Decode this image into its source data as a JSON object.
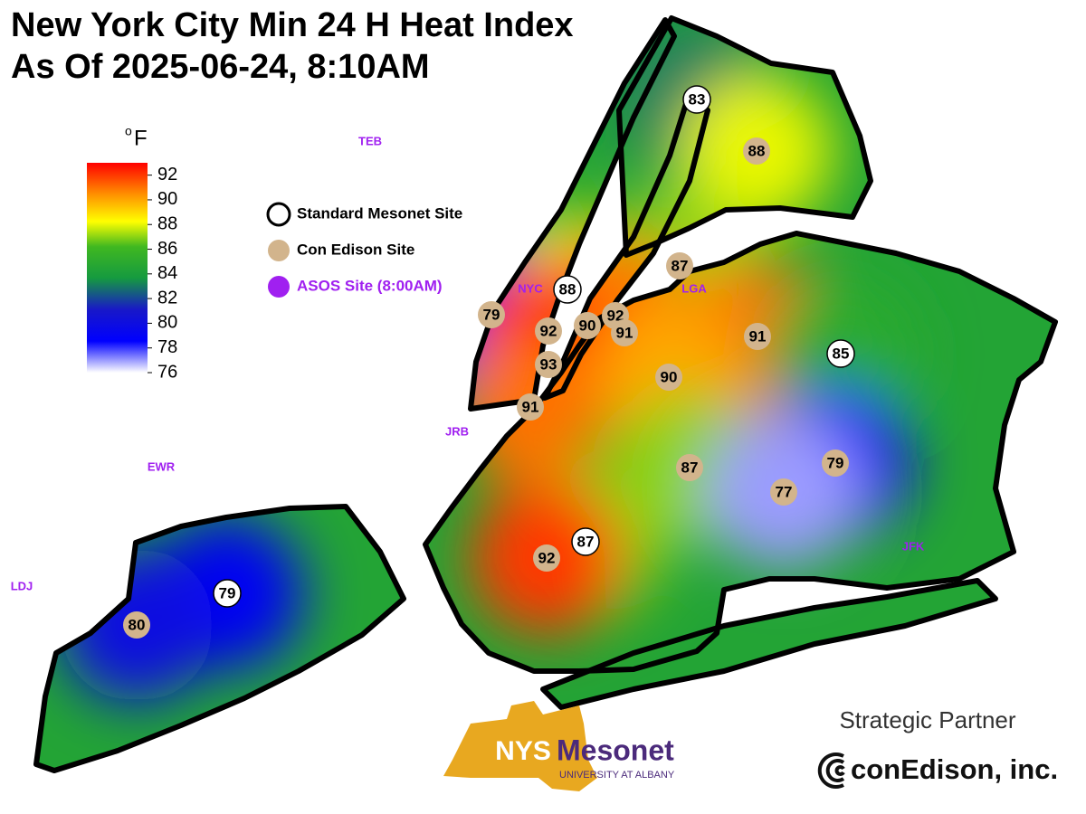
{
  "title": [
    "New York City Min 24 H Heat Index",
    "As Of 2025-06-24,  8:10AM"
  ],
  "colorbar": {
    "unit_prefix": "o",
    "unit": "F",
    "range": [
      76,
      93
    ],
    "ticks": [
      76,
      78,
      80,
      82,
      84,
      86,
      88,
      90,
      92
    ]
  },
  "legend": [
    {
      "label": "Standard Mesonet Site",
      "color": "#ffffff"
    },
    {
      "label": "Con Edison Site",
      "color": "#d2b48c"
    },
    {
      "label": "ASOS Site (8:00AM)",
      "color": "#a020f0"
    }
  ],
  "stations": [
    {
      "value": 83,
      "color": "#ffffff"
    },
    {
      "value": 88,
      "color": "#d2b48c"
    },
    {
      "value": 87,
      "color": "#d2b48c"
    },
    {
      "value": 88,
      "color": "#ffffff"
    },
    {
      "value": 79,
      "color": "#d2b48c"
    },
    {
      "value": 92,
      "color": "#d2b48c"
    },
    {
      "value": 90,
      "color": "#d2b48c"
    },
    {
      "value": 92,
      "color": "#d2b48c"
    },
    {
      "value": 91,
      "color": "#d2b48c"
    },
    {
      "value": 93,
      "color": "#d2b48c"
    },
    {
      "value": 91,
      "color": "#d2b48c"
    },
    {
      "value": 85,
      "color": "#ffffff"
    },
    {
      "value": 90,
      "color": "#d2b48c"
    },
    {
      "value": 91,
      "color": "#d2b48c"
    },
    {
      "value": 87,
      "color": "#d2b48c"
    },
    {
      "value": 79,
      "color": "#d2b48c"
    },
    {
      "value": 77,
      "color": "#d2b48c"
    },
    {
      "value": 87,
      "color": "#ffffff"
    },
    {
      "value": 92,
      "color": "#d2b48c"
    },
    {
      "value": 79,
      "color": "#ffffff"
    },
    {
      "value": 80,
      "color": "#d2b48c"
    }
  ],
  "asos": {
    "color": "#a020f0",
    "labels": [
      "TEB",
      "NYC",
      "LGA",
      "JRB",
      "EWR",
      "LDJ",
      "JFK"
    ]
  },
  "logos": {
    "nys": "NYS",
    "mesonet": "Mesonet",
    "university": "UNIVERSITY AT ALBANY",
    "partner": "Strategic Partner",
    "conedison": "conEdison, inc."
  }
}
